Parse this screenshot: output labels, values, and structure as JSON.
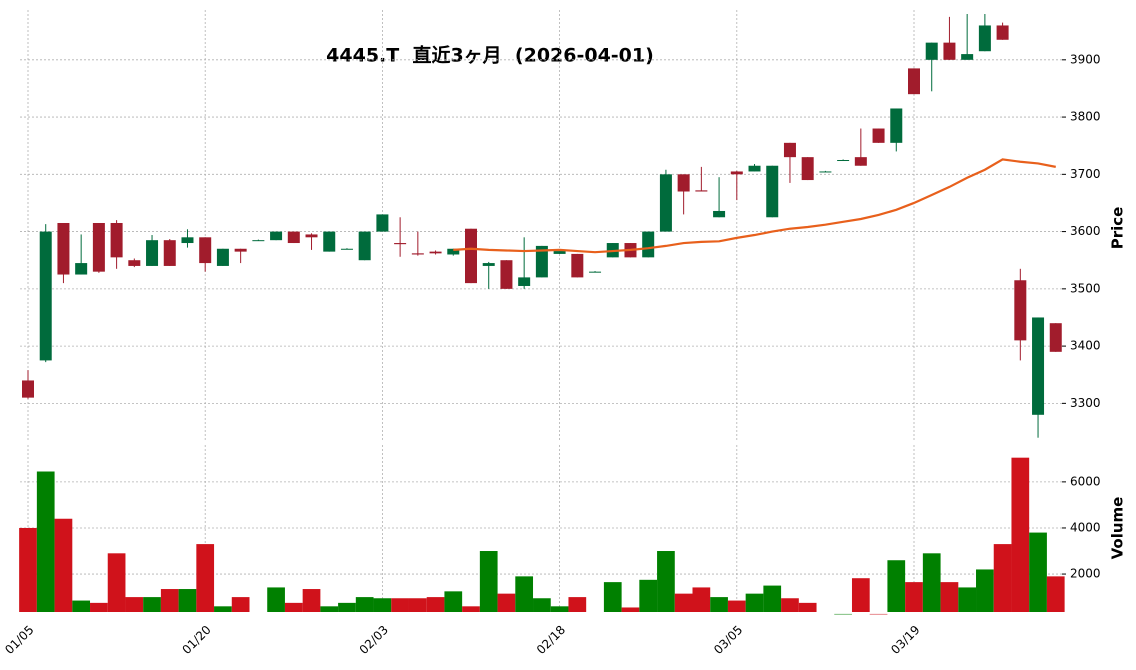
{
  "chart_data": {
    "type": "candlestick",
    "title": "4445.T  直近3ヶ月  (2026-04-01)",
    "categories": [
      "01/05",
      null,
      null,
      null,
      null,
      null,
      null,
      null,
      null,
      null,
      "01/20",
      null,
      null,
      null,
      null,
      null,
      null,
      null,
      null,
      null,
      "02/03",
      null,
      null,
      null,
      null,
      null,
      null,
      null,
      null,
      null,
      "02/18",
      null,
      null,
      null,
      null,
      null,
      null,
      null,
      null,
      null,
      "03/05",
      null,
      null,
      null,
      null,
      null,
      null,
      null,
      null,
      null,
      "03/19",
      null,
      null,
      null,
      null,
      null,
      null,
      null,
      null
    ],
    "open": [
      3340,
      3375,
      3615,
      3525,
      3615,
      3615,
      3550,
      3540,
      3585,
      3580,
      3590,
      3540,
      3570,
      3585,
      3585,
      3600,
      3595,
      3565,
      3570,
      3550,
      3600,
      3580,
      3562,
      3565,
      3560,
      3605,
      3540,
      3550,
      3505,
      3520,
      3561,
      3561,
      3530,
      3555,
      3580,
      3555,
      3600,
      3700,
      3672,
      3625,
      3705,
      3705,
      3625,
      3755,
      3730,
      3705,
      3725,
      3730,
      3780,
      3755,
      3885,
      3900,
      3930,
      3900,
      3915,
      3960,
      3515,
      3280,
      3440
    ],
    "high": [
      3358,
      3613,
      3615,
      3595,
      3615,
      3620,
      3553,
      3594,
      3587,
      3604,
      3590,
      3570,
      3570,
      3586,
      3600,
      3600,
      3597,
      3600,
      3571,
      3600,
      3630,
      3625,
      3600,
      3567,
      3570,
      3605,
      3547,
      3550,
      3590,
      3575,
      3567,
      3561,
      3531,
      3580,
      3580,
      3600,
      3708,
      3700,
      3713,
      3695,
      3706,
      3718,
      3715,
      3755,
      3730,
      3706,
      3726,
      3780,
      3780,
      3815,
      3885,
      3930,
      3975,
      3980,
      3980,
      3965,
      3535,
      3450,
      3440
    ],
    "low": [
      3308,
      3372,
      3510,
      3525,
      3528,
      3535,
      3538,
      3540,
      3540,
      3572,
      3530,
      3540,
      3545,
      3584,
      3585,
      3580,
      3568,
      3565,
      3569,
      3550,
      3600,
      3556,
      3558,
      3560,
      3558,
      3510,
      3500,
      3500,
      3500,
      3520,
      3561,
      3520,
      3529,
      3555,
      3555,
      3555,
      3600,
      3630,
      3670,
      3625,
      3655,
      3705,
      3625,
      3685,
      3690,
      3704,
      3724,
      3715,
      3755,
      3740,
      3840,
      3845,
      3900,
      3900,
      3915,
      3935,
      3375,
      3240,
      3390
    ],
    "close": [
      3310,
      3600,
      3525,
      3545,
      3530,
      3555,
      3540,
      3585,
      3540,
      3590,
      3545,
      3570,
      3565,
      3585,
      3600,
      3580,
      3590,
      3600,
      3570,
      3600,
      3630,
      3578,
      3560,
      3562,
      3570,
      3510,
      3545,
      3500,
      3520,
      3575,
      3566,
      3520,
      3530,
      3580,
      3555,
      3600,
      3700,
      3670,
      3670,
      3636,
      3700,
      3715,
      3715,
      3730,
      3690,
      3705,
      3725,
      3715,
      3755,
      3815,
      3840,
      3930,
      3900,
      3910,
      3960,
      3935,
      3410,
      3450,
      3390
    ],
    "volume": [
      4000,
      6450,
      4400,
      850,
      750,
      2900,
      1000,
      1000,
      1350,
      1350,
      3300,
      600,
      1000,
      null,
      1420,
      750,
      1350,
      600,
      750,
      1000,
      950,
      950,
      950,
      1000,
      1250,
      600,
      3000,
      1150,
      1900,
      950,
      600,
      1000,
      null,
      1650,
      550,
      1750,
      3000,
      1150,
      1420,
      1000,
      850,
      1150,
      1500,
      950,
      750,
      null,
      270,
      1820,
      270,
      2600,
      1650,
      2900,
      1650,
      1420,
      2200,
      3300,
      7050,
      3800,
      1900
    ],
    "moving_average": [
      null,
      null,
      null,
      null,
      null,
      null,
      null,
      null,
      null,
      null,
      null,
      null,
      null,
      null,
      null,
      null,
      null,
      null,
      null,
      null,
      null,
      null,
      null,
      null,
      3568,
      3570,
      3568,
      3567,
      3566,
      3567,
      3568,
      3566,
      3564,
      3566,
      3568,
      3571,
      3575,
      3580,
      3582,
      3583,
      3589,
      3594,
      3600,
      3605,
      3608,
      3612,
      3617,
      3622,
      3629,
      3638,
      3650,
      3664,
      3678,
      3694,
      3708,
      3726,
      3722,
      3719,
      3713
    ],
    "up_color": "#006b3c",
    "down_color": "#a11c2c",
    "volume_up_color": "#008000",
    "volume_down_color": "#d0121b",
    "ma_color": "#e8601c",
    "ylabel": "Price",
    "ylim": [
      3236,
      3987
    ],
    "yticks": [
      3300,
      3400,
      3500,
      3600,
      3700,
      3800,
      3900
    ],
    "y2label": "Volume",
    "y2lim": [
      180,
      7600
    ],
    "y2ticks": [
      2000,
      4000,
      6000
    ],
    "grid": true
  }
}
